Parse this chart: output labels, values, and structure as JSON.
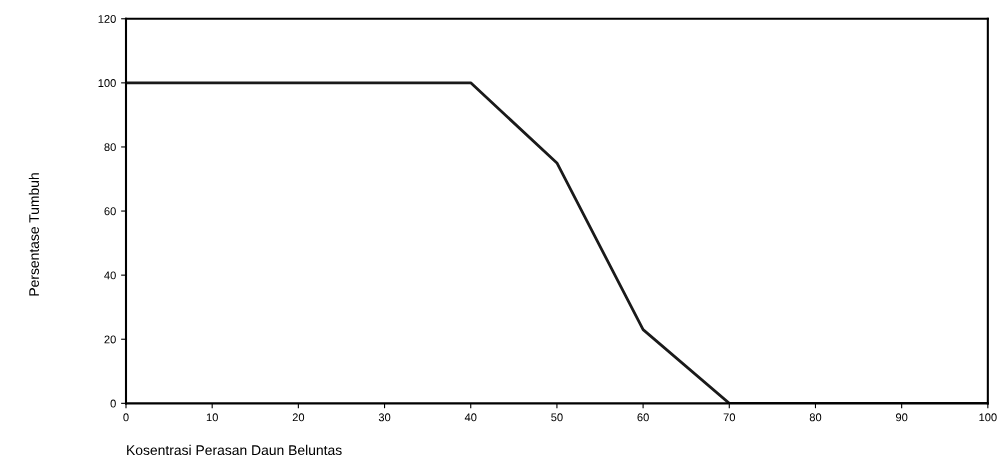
{
  "chart_data": {
    "type": "line",
    "xlabel": "Kosentrasi Perasan Daun Beluntas",
    "ylabel": "Persentase Tumbuh",
    "x": [
      0,
      40,
      50,
      60,
      70,
      80,
      90,
      100
    ],
    "series": [
      {
        "color": "#1a1a1a",
        "values": [
          100,
          100,
          75,
          23,
          0,
          0,
          0,
          0
        ]
      }
    ],
    "xlim": [
      0,
      100
    ],
    "xticks": [
      0,
      10,
      20,
      30,
      40,
      50,
      60,
      70,
      80,
      90,
      100
    ],
    "ylim": [
      0,
      120
    ],
    "yticks": [
      0,
      20,
      40,
      60,
      80,
      100,
      120
    ],
    "grid": false,
    "legend": false,
    "marker": "none",
    "line_style": "solid"
  }
}
